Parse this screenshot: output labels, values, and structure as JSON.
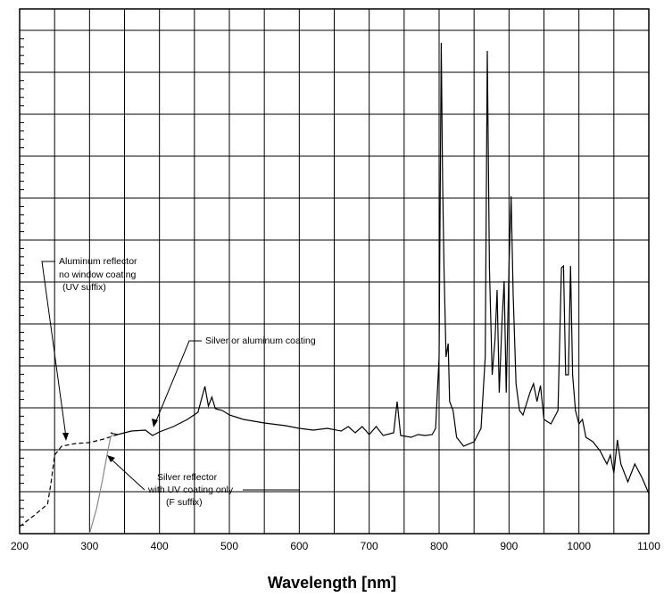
{
  "chart_data": {
    "type": "line",
    "xlabel": "Wavelength [nm]",
    "xlim": [
      200,
      1100
    ],
    "xticks": [
      200,
      300,
      400,
      500,
      600,
      700,
      800,
      900,
      1000,
      1100
    ],
    "ylim": [
      0,
      588
    ],
    "yticks": [
      0,
      47,
      94,
      141,
      188,
      235,
      282,
      329,
      376,
      423,
      470,
      517,
      564
    ],
    "grid": true,
    "series": [
      {
        "name": "Silver or aluminum coating",
        "color": "#000000",
        "style": "solid",
        "x": [
          330,
          340,
          360,
          380,
          390,
          400,
          420,
          440,
          455,
          465,
          470,
          475,
          480,
          490,
          500,
          520,
          550,
          580,
          600,
          620,
          640,
          660,
          670,
          680,
          690,
          700,
          710,
          720,
          735,
          740,
          745,
          760,
          770,
          780,
          790,
          795,
          800,
          803,
          805,
          807,
          810,
          813,
          815,
          820,
          825,
          835,
          850,
          860,
          866,
          869,
          872,
          876,
          880,
          883,
          886,
          890,
          893,
          896,
          900,
          903,
          906,
          910,
          915,
          920,
          930,
          935,
          940,
          945,
          950,
          960,
          970,
          975,
          978,
          981,
          985,
          988,
          991,
          995,
          1000,
          1005,
          1010,
          1020,
          1030,
          1040,
          1045,
          1050,
          1055,
          1060,
          1070,
          1075,
          1080,
          1090,
          1100
        ],
        "values": [
          113,
          111,
          115,
          116,
          110,
          114,
          120,
          128,
          136,
          165,
          143,
          153,
          140,
          138,
          133,
          128,
          124,
          121,
          118,
          116,
          118,
          115,
          120,
          113,
          120,
          111,
          120,
          110,
          113,
          148,
          110,
          108,
          111,
          110,
          111,
          118,
          198,
          550,
          398,
          298,
          198,
          213,
          148,
          138,
          108,
          98,
          103,
          118,
          198,
          541,
          298,
          178,
          218,
          273,
          158,
          238,
          283,
          158,
          298,
          378,
          268,
          168,
          138,
          133,
          158,
          168,
          148,
          166,
          128,
          123,
          138,
          298,
          300,
          178,
          178,
          300,
          178,
          138,
          123,
          128,
          108,
          103,
          93,
          78,
          88,
          68,
          105,
          78,
          58,
          68,
          78,
          63,
          45
        ]
      },
      {
        "name": "Aluminum reflector no window coating (UV suffix)",
        "color": "#000000",
        "style": "dashed",
        "x": [
          200,
          220,
          240,
          245,
          250,
          260,
          280,
          300,
          320,
          340
        ],
        "values": [
          8,
          20,
          33,
          58,
          88,
          98,
          101,
          102,
          106,
          111
        ]
      },
      {
        "name": "Silver reflector with UV coating only (F suffix)",
        "color": "#888888",
        "style": "solid",
        "x": [
          300,
          310,
          318,
          325,
          330,
          335
        ],
        "values": [
          0,
          28,
          58,
          88,
          108,
          113
        ]
      }
    ],
    "annotations": [
      [
        "Aluminum reflector",
        "no window coating",
        "(UV suffix)"
      ],
      [
        "Silver or aluminum coating"
      ],
      [
        "Silver reflector",
        "with UV coating only",
        "(F suffix)"
      ]
    ]
  }
}
